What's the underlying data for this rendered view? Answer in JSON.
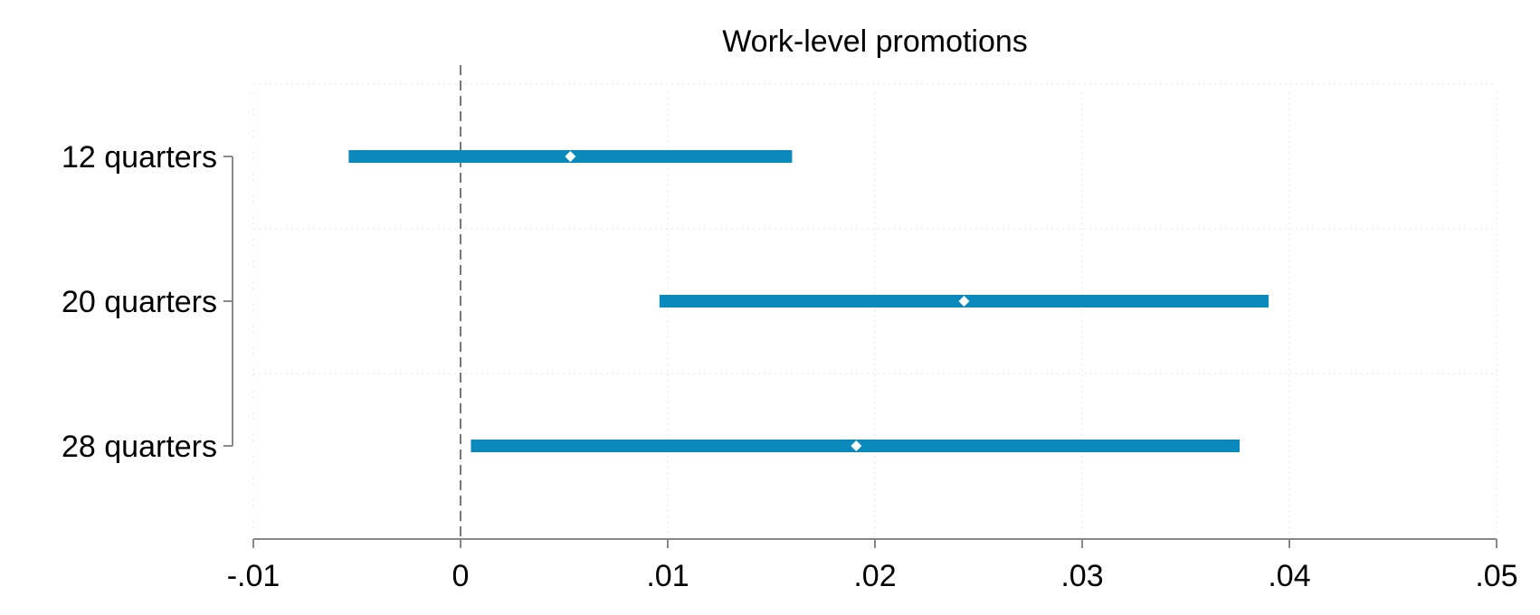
{
  "chart_data": {
    "type": "coefficient-plot",
    "title": "Work-level promotions",
    "xlabel": "",
    "ylabel": "",
    "xlim": [
      -0.01,
      0.05
    ],
    "x_ticks": [
      {
        "value": -0.01,
        "label": "-.01"
      },
      {
        "value": 0,
        "label": "0"
      },
      {
        "value": 0.01,
        "label": ".01"
      },
      {
        "value": 0.02,
        "label": ".02"
      },
      {
        "value": 0.03,
        "label": ".03"
      },
      {
        "value": 0.04,
        "label": ".04"
      },
      {
        "value": 0.05,
        "label": ".05"
      }
    ],
    "reference_line_x": 0,
    "series": [
      {
        "label": "12 quarters",
        "estimate": 0.0053,
        "ci_low": -0.0054,
        "ci_high": 0.016
      },
      {
        "label": "20 quarters",
        "estimate": 0.0243,
        "ci_low": 0.0096,
        "ci_high": 0.039
      },
      {
        "label": "28 quarters",
        "estimate": 0.0191,
        "ci_low": 0.0005,
        "ci_high": 0.0376
      }
    ],
    "colors": {
      "bar": "#0a89bd",
      "marker": "#ffffff",
      "axis": "#888888",
      "grid": "#e6e6e6"
    },
    "grid": true,
    "legend": "none"
  }
}
